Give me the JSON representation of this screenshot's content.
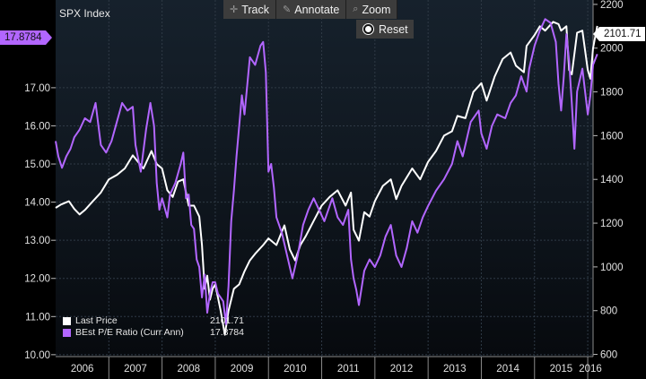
{
  "header": {
    "title": "SPX Index"
  },
  "toolbar": {
    "track_label": "Track",
    "annotate_label": "Annotate",
    "zoom_label": "Zoom",
    "reset_label": "Reset"
  },
  "tags": {
    "left_value": "17.8784",
    "right_value": "2101.71"
  },
  "legend": [
    {
      "name": "Last Price",
      "value": "2101.71",
      "color": "#ffffff"
    },
    {
      "name": "BEst P/E Ratio (Curr Ann)",
      "value": "17.8784",
      "color": "#b266ff"
    }
  ],
  "chart_data": {
    "type": "line",
    "x_ticks": [
      "2006",
      "2007",
      "2008",
      "2009",
      "2010",
      "2011",
      "2012",
      "2013",
      "2014",
      "2015",
      "2016"
    ],
    "xlim": [
      2006.0,
      2016.1
    ],
    "left_axis": {
      "ticks": [
        "10.00",
        "11.00",
        "12.00",
        "13.00",
        "14.00",
        "15.00",
        "16.00",
        "17.00"
      ],
      "ylim": [
        9.95,
        19.3
      ]
    },
    "right_axis": {
      "ticks": [
        "600",
        "800",
        "1000",
        "1200",
        "1400",
        "1600",
        "1800",
        "2000",
        "2200"
      ],
      "ylim": [
        590,
        2220
      ]
    },
    "grid": true,
    "series": [
      {
        "name": "Last Price",
        "axis": "right",
        "color": "#ffffff",
        "points": [
          [
            2006.0,
            1270
          ],
          [
            2006.1,
            1285
          ],
          [
            2006.25,
            1300
          ],
          [
            2006.35,
            1265
          ],
          [
            2006.45,
            1240
          ],
          [
            2006.55,
            1260
          ],
          [
            2006.7,
            1300
          ],
          [
            2006.85,
            1340
          ],
          [
            2007.0,
            1400
          ],
          [
            2007.15,
            1420
          ],
          [
            2007.3,
            1450
          ],
          [
            2007.45,
            1510
          ],
          [
            2007.55,
            1480
          ],
          [
            2007.65,
            1450
          ],
          [
            2007.8,
            1530
          ],
          [
            2007.9,
            1470
          ],
          [
            2008.0,
            1450
          ],
          [
            2008.1,
            1350
          ],
          [
            2008.2,
            1320
          ],
          [
            2008.3,
            1390
          ],
          [
            2008.4,
            1400
          ],
          [
            2008.5,
            1280
          ],
          [
            2008.6,
            1280
          ],
          [
            2008.7,
            1230
          ],
          [
            2008.75,
            1100
          ],
          [
            2008.8,
            900
          ],
          [
            2008.85,
            960
          ],
          [
            2008.9,
            850
          ],
          [
            2008.95,
            900
          ],
          [
            2009.0,
            920
          ],
          [
            2009.1,
            800
          ],
          [
            2009.18,
            690
          ],
          [
            2009.25,
            800
          ],
          [
            2009.35,
            900
          ],
          [
            2009.45,
            920
          ],
          [
            2009.55,
            980
          ],
          [
            2009.65,
            1030
          ],
          [
            2009.75,
            1060
          ],
          [
            2009.9,
            1100
          ],
          [
            2010.0,
            1130
          ],
          [
            2010.15,
            1100
          ],
          [
            2010.3,
            1190
          ],
          [
            2010.4,
            1080
          ],
          [
            2010.5,
            1030
          ],
          [
            2010.6,
            1100
          ],
          [
            2010.7,
            1140
          ],
          [
            2010.85,
            1210
          ],
          [
            2011.0,
            1280
          ],
          [
            2011.15,
            1320
          ],
          [
            2011.3,
            1350
          ],
          [
            2011.45,
            1280
          ],
          [
            2011.55,
            1340
          ],
          [
            2011.6,
            1170
          ],
          [
            2011.7,
            1120
          ],
          [
            2011.8,
            1250
          ],
          [
            2011.9,
            1230
          ],
          [
            2012.0,
            1300
          ],
          [
            2012.15,
            1370
          ],
          [
            2012.3,
            1400
          ],
          [
            2012.4,
            1310
          ],
          [
            2012.5,
            1370
          ],
          [
            2012.7,
            1450
          ],
          [
            2012.85,
            1400
          ],
          [
            2013.0,
            1480
          ],
          [
            2013.15,
            1530
          ],
          [
            2013.3,
            1600
          ],
          [
            2013.45,
            1620
          ],
          [
            2013.55,
            1690
          ],
          [
            2013.7,
            1680
          ],
          [
            2013.85,
            1800
          ],
          [
            2014.0,
            1840
          ],
          [
            2014.1,
            1760
          ],
          [
            2014.25,
            1870
          ],
          [
            2014.4,
            1950
          ],
          [
            2014.55,
            1980
          ],
          [
            2014.65,
            1920
          ],
          [
            2014.8,
            1890
          ],
          [
            2014.85,
            2010
          ],
          [
            2015.0,
            2060
          ],
          [
            2015.1,
            2100
          ],
          [
            2015.2,
            2080
          ],
          [
            2015.35,
            2120
          ],
          [
            2015.45,
            2110
          ],
          [
            2015.5,
            2080
          ],
          [
            2015.6,
            2100
          ],
          [
            2015.65,
            1900
          ],
          [
            2015.7,
            1880
          ],
          [
            2015.8,
            2070
          ],
          [
            2015.9,
            2080
          ],
          [
            2016.0,
            1900
          ],
          [
            2016.05,
            1860
          ],
          [
            2016.1,
            2000
          ],
          [
            2016.18,
            2101.71
          ]
        ]
      },
      {
        "name": "BEst P/E Ratio (Curr Ann)",
        "axis": "left",
        "color": "#b266ff",
        "points": [
          [
            2006.0,
            15.6
          ],
          [
            2006.05,
            15.2
          ],
          [
            2006.12,
            14.9
          ],
          [
            2006.2,
            15.2
          ],
          [
            2006.28,
            15.4
          ],
          [
            2006.35,
            15.7
          ],
          [
            2006.45,
            15.9
          ],
          [
            2006.55,
            16.2
          ],
          [
            2006.65,
            16.1
          ],
          [
            2006.75,
            16.6
          ],
          [
            2006.85,
            15.5
          ],
          [
            2006.95,
            15.3
          ],
          [
            2007.05,
            15.6
          ],
          [
            2007.15,
            16.1
          ],
          [
            2007.25,
            16.6
          ],
          [
            2007.35,
            16.4
          ],
          [
            2007.45,
            16.5
          ],
          [
            2007.5,
            15.5
          ],
          [
            2007.6,
            14.8
          ],
          [
            2007.7,
            15.9
          ],
          [
            2007.78,
            16.6
          ],
          [
            2007.85,
            16.0
          ],
          [
            2007.9,
            14.5
          ],
          [
            2007.95,
            13.8
          ],
          [
            2008.0,
            14.1
          ],
          [
            2008.1,
            13.6
          ],
          [
            2008.15,
            14.2
          ],
          [
            2008.25,
            14.5
          ],
          [
            2008.35,
            15.0
          ],
          [
            2008.4,
            15.3
          ],
          [
            2008.45,
            14.1
          ],
          [
            2008.5,
            14.2
          ],
          [
            2008.55,
            13.4
          ],
          [
            2008.6,
            13.3
          ],
          [
            2008.65,
            12.5
          ],
          [
            2008.7,
            12.3
          ],
          [
            2008.75,
            11.5
          ],
          [
            2008.8,
            12.1
          ],
          [
            2008.85,
            11.1
          ],
          [
            2008.9,
            11.6
          ],
          [
            2008.95,
            11.9
          ],
          [
            2009.0,
            11.9
          ],
          [
            2009.05,
            11.6
          ],
          [
            2009.1,
            11.5
          ],
          [
            2009.15,
            11.4
          ],
          [
            2009.2,
            10.8
          ],
          [
            2009.25,
            11.8
          ],
          [
            2009.3,
            13.5
          ],
          [
            2009.35,
            14.3
          ],
          [
            2009.4,
            15.2
          ],
          [
            2009.45,
            16.0
          ],
          [
            2009.5,
            16.8
          ],
          [
            2009.55,
            16.3
          ],
          [
            2009.65,
            17.8
          ],
          [
            2009.75,
            17.6
          ],
          [
            2009.85,
            18.1
          ],
          [
            2009.9,
            18.2
          ],
          [
            2009.95,
            17.4
          ],
          [
            2010.0,
            14.8
          ],
          [
            2010.05,
            15.0
          ],
          [
            2010.1,
            14.4
          ],
          [
            2010.15,
            13.6
          ],
          [
            2010.25,
            13.2
          ],
          [
            2010.35,
            12.6
          ],
          [
            2010.45,
            12.0
          ],
          [
            2010.55,
            12.6
          ],
          [
            2010.65,
            13.4
          ],
          [
            2010.75,
            13.8
          ],
          [
            2010.85,
            14.1
          ],
          [
            2010.95,
            13.8
          ],
          [
            2011.05,
            13.5
          ],
          [
            2011.2,
            14.1
          ],
          [
            2011.3,
            13.6
          ],
          [
            2011.4,
            13.4
          ],
          [
            2011.5,
            13.8
          ],
          [
            2011.55,
            12.5
          ],
          [
            2011.6,
            12.0
          ],
          [
            2011.65,
            11.7
          ],
          [
            2011.7,
            11.3
          ],
          [
            2011.8,
            12.2
          ],
          [
            2011.9,
            12.5
          ],
          [
            2012.0,
            12.3
          ],
          [
            2012.1,
            12.6
          ],
          [
            2012.2,
            13.1
          ],
          [
            2012.3,
            13.4
          ],
          [
            2012.4,
            12.6
          ],
          [
            2012.5,
            12.3
          ],
          [
            2012.6,
            12.8
          ],
          [
            2012.7,
            13.5
          ],
          [
            2012.8,
            13.2
          ],
          [
            2012.9,
            13.6
          ],
          [
            2013.0,
            13.9
          ],
          [
            2013.15,
            14.3
          ],
          [
            2013.3,
            14.6
          ],
          [
            2013.45,
            15.0
          ],
          [
            2013.55,
            15.6
          ],
          [
            2013.65,
            15.2
          ],
          [
            2013.8,
            16.1
          ],
          [
            2013.95,
            16.4
          ],
          [
            2014.0,
            15.8
          ],
          [
            2014.1,
            15.4
          ],
          [
            2014.2,
            16.0
          ],
          [
            2014.3,
            16.3
          ],
          [
            2014.45,
            16.2
          ],
          [
            2014.55,
            16.6
          ],
          [
            2014.65,
            16.8
          ],
          [
            2014.75,
            17.3
          ],
          [
            2014.85,
            16.9
          ],
          [
            2014.9,
            17.5
          ],
          [
            2015.0,
            18.1
          ],
          [
            2015.1,
            18.5
          ],
          [
            2015.2,
            18.8
          ],
          [
            2015.3,
            18.7
          ],
          [
            2015.4,
            18.2
          ],
          [
            2015.45,
            17.1
          ],
          [
            2015.5,
            16.4
          ],
          [
            2015.55,
            17.3
          ],
          [
            2015.6,
            18.4
          ],
          [
            2015.65,
            17.7
          ],
          [
            2015.7,
            16.6
          ],
          [
            2015.75,
            15.4
          ],
          [
            2015.8,
            16.9
          ],
          [
            2015.9,
            17.5
          ],
          [
            2016.0,
            16.3
          ],
          [
            2016.05,
            16.8
          ],
          [
            2016.1,
            17.6
          ],
          [
            2016.18,
            17.88
          ]
        ]
      }
    ]
  }
}
